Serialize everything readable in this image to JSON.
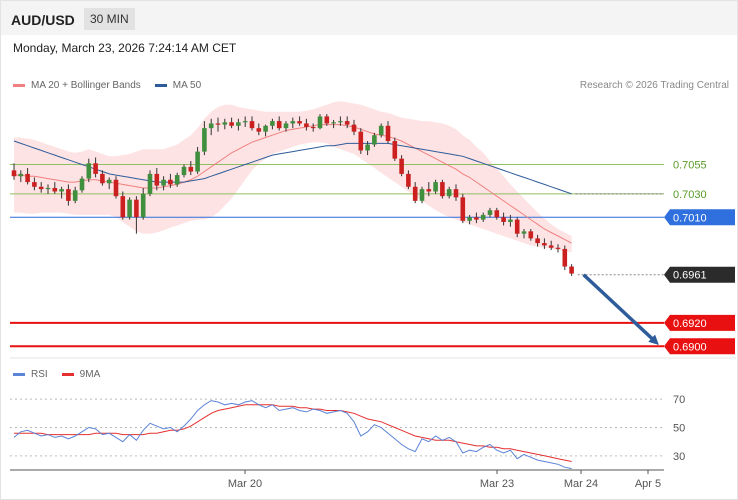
{
  "header": {
    "symbol": "AUD/USD",
    "timeframe": "30 MIN"
  },
  "datetime": "Monday, March 23, 2026 7:24:14 AM CET",
  "legend": [
    {
      "label": "MA 20 + Bollinger Bands",
      "color": "#f08080"
    },
    {
      "label": "MA 50",
      "color": "#2e5c9a"
    }
  ],
  "rsi_legend": [
    {
      "label": "RSI",
      "color": "#5b83d6"
    },
    {
      "label": "9MA",
      "color": "#e53030"
    }
  ],
  "credit": "Research © 2026 Trading Central",
  "colors": {
    "up": "#3f8f3f",
    "down": "#cc2020",
    "ma20": "#f08080",
    "ma50": "#2e5c9a",
    "band": "#fde3e3",
    "pivot": "#2f6fde",
    "resistance": "#8fbf5f",
    "support": "#e81010",
    "current": "#2b2b2b",
    "arrow": "#2e5c9a"
  },
  "chart_data": {
    "type": "candlestick",
    "price_axis": {
      "ylim": [
        0.689,
        0.711
      ]
    },
    "x_ticks": [
      "Mar 20",
      "Mar 23",
      "Mar 24",
      "Apr 5"
    ],
    "levels": [
      {
        "label": "0.7055",
        "value": 0.7055,
        "kind": "resistance"
      },
      {
        "label": "0.7030",
        "value": 0.703,
        "kind": "resistance"
      },
      {
        "label": "0.7010",
        "value": 0.701,
        "kind": "pivot"
      },
      {
        "label": "0.6961",
        "value": 0.6961,
        "kind": "current"
      },
      {
        "label": "0.6920",
        "value": 0.692,
        "kind": "support"
      },
      {
        "label": "0.6900",
        "value": 0.69,
        "kind": "support"
      }
    ],
    "forecast": {
      "from": 0.6961,
      "to": 0.69
    },
    "candles": [
      [
        0.705,
        0.7056,
        0.7042,
        0.7045
      ],
      [
        0.7045,
        0.705,
        0.704,
        0.7047
      ],
      [
        0.7047,
        0.7052,
        0.7038,
        0.704
      ],
      [
        0.704,
        0.7044,
        0.7033,
        0.7036
      ],
      [
        0.7036,
        0.704,
        0.7031,
        0.7034
      ],
      [
        0.7034,
        0.7038,
        0.703,
        0.7035
      ],
      [
        0.7035,
        0.704,
        0.703,
        0.7032
      ],
      [
        0.7032,
        0.7036,
        0.7026,
        0.7034
      ],
      [
        0.7034,
        0.7038,
        0.702,
        0.7024
      ],
      [
        0.7024,
        0.7036,
        0.7022,
        0.7033
      ],
      [
        0.7033,
        0.7045,
        0.7031,
        0.7043
      ],
      [
        0.7043,
        0.706,
        0.704,
        0.7056
      ],
      [
        0.7056,
        0.7061,
        0.7044,
        0.7047
      ],
      [
        0.7047,
        0.705,
        0.7037,
        0.7039
      ],
      [
        0.7039,
        0.7044,
        0.7034,
        0.7042
      ],
      [
        0.7042,
        0.7045,
        0.7026,
        0.7028
      ],
      [
        0.7028,
        0.7032,
        0.7008,
        0.701
      ],
      [
        0.701,
        0.7027,
        0.7008,
        0.7025
      ],
      [
        0.7025,
        0.7028,
        0.6996,
        0.701
      ],
      [
        0.701,
        0.7035,
        0.7008,
        0.703
      ],
      [
        0.703,
        0.705,
        0.7028,
        0.7047
      ],
      [
        0.7047,
        0.7052,
        0.7033,
        0.7037
      ],
      [
        0.7037,
        0.7045,
        0.7033,
        0.7042
      ],
      [
        0.7042,
        0.7047,
        0.7035,
        0.7038
      ],
      [
        0.7038,
        0.7048,
        0.7036,
        0.7046
      ],
      [
        0.7046,
        0.7055,
        0.7044,
        0.7053
      ],
      [
        0.7053,
        0.7058,
        0.7046,
        0.7049
      ],
      [
        0.7049,
        0.707,
        0.7047,
        0.7066
      ],
      [
        0.7066,
        0.7092,
        0.7063,
        0.7086
      ],
      [
        0.7086,
        0.7094,
        0.708,
        0.709
      ],
      [
        0.709,
        0.7095,
        0.7083,
        0.7089
      ],
      [
        0.7089,
        0.7094,
        0.7085,
        0.7091
      ],
      [
        0.7091,
        0.7095,
        0.7086,
        0.7088
      ],
      [
        0.7088,
        0.7094,
        0.7084,
        0.7091
      ],
      [
        0.7091,
        0.7096,
        0.7087,
        0.7092
      ],
      [
        0.7092,
        0.7096,
        0.7084,
        0.7086
      ],
      [
        0.7086,
        0.709,
        0.708,
        0.7083
      ],
      [
        0.7083,
        0.7089,
        0.7079,
        0.7088
      ],
      [
        0.7088,
        0.7094,
        0.7085,
        0.7092
      ],
      [
        0.7092,
        0.7096,
        0.7084,
        0.7086
      ],
      [
        0.7086,
        0.7092,
        0.7083,
        0.709
      ],
      [
        0.709,
        0.7095,
        0.7086,
        0.7092
      ],
      [
        0.7092,
        0.7096,
        0.7088,
        0.709
      ],
      [
        0.709,
        0.7094,
        0.7084,
        0.7087
      ],
      [
        0.7087,
        0.709,
        0.7083,
        0.7086
      ],
      [
        0.7086,
        0.7098,
        0.7085,
        0.7096
      ],
      [
        0.7096,
        0.7098,
        0.7088,
        0.709
      ],
      [
        0.709,
        0.7093,
        0.7086,
        0.7091
      ],
      [
        0.7091,
        0.7096,
        0.7088,
        0.7092
      ],
      [
        0.7092,
        0.7096,
        0.7086,
        0.7089
      ],
      [
        0.7089,
        0.7093,
        0.708,
        0.7083
      ],
      [
        0.7083,
        0.7086,
        0.7064,
        0.7067
      ],
      [
        0.7067,
        0.7075,
        0.7063,
        0.7072
      ],
      [
        0.7072,
        0.7082,
        0.707,
        0.708
      ],
      [
        0.708,
        0.709,
        0.7078,
        0.7088
      ],
      [
        0.7088,
        0.7092,
        0.7073,
        0.7075
      ],
      [
        0.7075,
        0.7078,
        0.7058,
        0.706
      ],
      [
        0.706,
        0.7063,
        0.7045,
        0.7047
      ],
      [
        0.7047,
        0.705,
        0.7034,
        0.7036
      ],
      [
        0.7036,
        0.704,
        0.7022,
        0.7024
      ],
      [
        0.7024,
        0.7036,
        0.7022,
        0.7034
      ],
      [
        0.7034,
        0.704,
        0.7028,
        0.7032
      ],
      [
        0.7032,
        0.7042,
        0.703,
        0.704
      ],
      [
        0.704,
        0.7042,
        0.7026,
        0.7028
      ],
      [
        0.7028,
        0.7036,
        0.7026,
        0.7034
      ],
      [
        0.7034,
        0.7038,
        0.7024,
        0.7027
      ],
      [
        0.7027,
        0.703,
        0.7005,
        0.7007
      ],
      [
        0.7007,
        0.7012,
        0.7004,
        0.701
      ],
      [
        0.701,
        0.7014,
        0.7005,
        0.7008
      ],
      [
        0.7008,
        0.7014,
        0.7006,
        0.7012
      ],
      [
        0.7012,
        0.7018,
        0.701,
        0.7016
      ],
      [
        0.7016,
        0.7018,
        0.7008,
        0.701
      ],
      [
        0.701,
        0.7014,
        0.7003,
        0.7006
      ],
      [
        0.7006,
        0.7012,
        0.7002,
        0.7008
      ],
      [
        0.7008,
        0.701,
        0.6993,
        0.6996
      ],
      [
        0.6996,
        0.7,
        0.6992,
        0.6998
      ],
      [
        0.6998,
        0.7,
        0.699,
        0.6992
      ],
      [
        0.6992,
        0.6995,
        0.6985,
        0.6988
      ],
      [
        0.6988,
        0.6992,
        0.6983,
        0.6986
      ],
      [
        0.6986,
        0.699,
        0.6982,
        0.6984
      ],
      [
        0.6984,
        0.6987,
        0.698,
        0.6983
      ],
      [
        0.6983,
        0.6986,
        0.6965,
        0.6968
      ],
      [
        0.6968,
        0.697,
        0.696,
        0.6962
      ]
    ],
    "ma50": [
      0.7075,
      0.7073,
      0.7071,
      0.7069,
      0.7067,
      0.7065,
      0.7063,
      0.7061,
      0.7059,
      0.7057,
      0.7055,
      0.7053,
      0.7051,
      0.7049,
      0.7047,
      0.7046,
      0.7045,
      0.7044,
      0.7043,
      0.7042,
      0.7041,
      0.704,
      0.704,
      0.704,
      0.704,
      0.704,
      0.7041,
      0.7042,
      0.7043,
      0.7045,
      0.7047,
      0.7049,
      0.7051,
      0.7053,
      0.7055,
      0.7057,
      0.7059,
      0.7061,
      0.7063,
      0.7064,
      0.7065,
      0.7066,
      0.7067,
      0.7068,
      0.7069,
      0.707,
      0.7071,
      0.7071,
      0.7072,
      0.7073,
      0.7073,
      0.7073,
      0.7073,
      0.7073,
      0.7073,
      0.7073,
      0.7072,
      0.7071,
      0.707,
      0.7069,
      0.7068,
      0.7067,
      0.7066,
      0.7065,
      0.7064,
      0.7063,
      0.7062,
      0.706,
      0.7058,
      0.7056,
      0.7054,
      0.7052,
      0.705,
      0.7048,
      0.7046,
      0.7044,
      0.7042,
      0.704,
      0.7038,
      0.7036,
      0.7034,
      0.7032,
      0.703
    ],
    "ma20": [
      0.7046,
      0.7046,
      0.7045,
      0.7045,
      0.7044,
      0.7043,
      0.7042,
      0.7041,
      0.704,
      0.704,
      0.7041,
      0.7042,
      0.7042,
      0.7041,
      0.704,
      0.7039,
      0.7038,
      0.7037,
      0.7036,
      0.7035,
      0.7035,
      0.7035,
      0.7036,
      0.7037,
      0.7038,
      0.704,
      0.7042,
      0.7045,
      0.7049,
      0.7053,
      0.7057,
      0.7061,
      0.7065,
      0.7068,
      0.7071,
      0.7074,
      0.7076,
      0.7078,
      0.708,
      0.7082,
      0.7084,
      0.7085,
      0.7086,
      0.7087,
      0.7088,
      0.7089,
      0.7089,
      0.7089,
      0.7089,
      0.7088,
      0.7087,
      0.7085,
      0.7083,
      0.7081,
      0.708,
      0.7079,
      0.7077,
      0.7075,
      0.7072,
      0.7069,
      0.7066,
      0.7063,
      0.706,
      0.7057,
      0.7054,
      0.7051,
      0.7047,
      0.7044,
      0.704,
      0.7036,
      0.7032,
      0.7028,
      0.7024,
      0.702,
      0.7016,
      0.7012,
      0.7008,
      0.7004,
      0.7,
      0.6997,
      0.6994,
      0.6991,
      0.6988
    ],
    "bb_upper": [
      0.7078,
      0.7078,
      0.7077,
      0.7076,
      0.7074,
      0.7072,
      0.707,
      0.7068,
      0.7066,
      0.7065,
      0.7066,
      0.7068,
      0.7066,
      0.7064,
      0.7062,
      0.7062,
      0.7063,
      0.7064,
      0.7066,
      0.7068,
      0.7068,
      0.7068,
      0.7068,
      0.707,
      0.7072,
      0.7076,
      0.708,
      0.7086,
      0.7094,
      0.71,
      0.7104,
      0.7106,
      0.7106,
      0.7104,
      0.7103,
      0.7102,
      0.7101,
      0.71,
      0.71,
      0.71,
      0.71,
      0.71,
      0.71,
      0.7101,
      0.7102,
      0.7104,
      0.7106,
      0.7108,
      0.7109,
      0.7108,
      0.7107,
      0.7106,
      0.7104,
      0.7102,
      0.71,
      0.7099,
      0.7097,
      0.7095,
      0.7094,
      0.7093,
      0.7092,
      0.7092,
      0.7091,
      0.709,
      0.7088,
      0.7085,
      0.708,
      0.7076,
      0.707,
      0.7065,
      0.7058,
      0.7052,
      0.7045,
      0.7038,
      0.7032,
      0.7026,
      0.702,
      0.7014,
      0.7009,
      0.7004,
      0.7,
      0.6997,
      0.6994
    ],
    "bb_lower": [
      0.7014,
      0.7014,
      0.7013,
      0.7013,
      0.7014,
      0.7014,
      0.7014,
      0.7014,
      0.7013,
      0.7012,
      0.7012,
      0.7012,
      0.7012,
      0.7012,
      0.7012,
      0.701,
      0.7006,
      0.7002,
      0.6998,
      0.6996,
      0.6996,
      0.6997,
      0.6999,
      0.7001,
      0.7003,
      0.7005,
      0.7007,
      0.7008,
      0.7008,
      0.701,
      0.7014,
      0.702,
      0.7026,
      0.7034,
      0.7042,
      0.705,
      0.7056,
      0.706,
      0.7064,
      0.7066,
      0.7068,
      0.707,
      0.7072,
      0.7073,
      0.7074,
      0.7074,
      0.7073,
      0.707,
      0.7068,
      0.7066,
      0.7064,
      0.706,
      0.7056,
      0.7052,
      0.7048,
      0.7044,
      0.704,
      0.7036,
      0.7032,
      0.7028,
      0.7024,
      0.702,
      0.7016,
      0.7013,
      0.701,
      0.7008,
      0.7006,
      0.7004,
      0.7002,
      0.7,
      0.6998,
      0.6996,
      0.6994,
      0.6992,
      0.699,
      0.6988,
      0.6986,
      0.6985,
      0.6984,
      0.6983,
      0.6982,
      0.6981,
      0.698
    ],
    "rsi_panel": {
      "y_ticks": [
        "70",
        "50",
        "30"
      ],
      "ylim": [
        20,
        80
      ],
      "rsi": [
        43,
        47,
        48,
        46,
        44,
        45,
        43,
        44,
        42,
        44,
        47,
        50,
        49,
        45,
        46,
        43,
        40,
        45,
        41,
        48,
        53,
        51,
        49,
        50,
        47,
        51,
        56,
        62,
        66,
        69,
        68,
        66,
        67,
        66,
        68,
        69,
        66,
        64,
        66,
        62,
        63,
        64,
        62,
        61,
        63,
        62,
        60,
        61,
        62,
        60,
        54,
        44,
        47,
        52,
        50,
        46,
        42,
        38,
        35,
        33,
        42,
        40,
        44,
        41,
        43,
        40,
        32,
        34,
        33,
        36,
        38,
        34,
        32,
        34,
        28,
        31,
        29,
        27,
        26,
        25,
        24,
        22,
        21
      ],
      "ma9": [
        46,
        46,
        46,
        46,
        46,
        45,
        45,
        45,
        45,
        45,
        45,
        45,
        46,
        46,
        46,
        46,
        45,
        45,
        45,
        45,
        46,
        46,
        47,
        48,
        48,
        49,
        51,
        54,
        57,
        60,
        62,
        63,
        64,
        65,
        66,
        66,
        66,
        66,
        66,
        65,
        65,
        65,
        64,
        64,
        63,
        63,
        62,
        62,
        62,
        61,
        60,
        58,
        56,
        55,
        54,
        52,
        50,
        48,
        46,
        44,
        43,
        42,
        41,
        41,
        41,
        40,
        39,
        38,
        37,
        37,
        36,
        36,
        35,
        35,
        34,
        33,
        32,
        31,
        30,
        29,
        28,
        27,
        26
      ]
    }
  }
}
